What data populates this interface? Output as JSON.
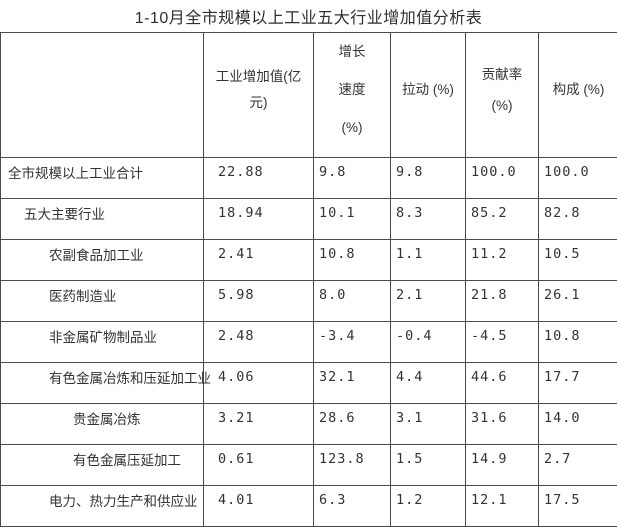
{
  "title": "1-10月全市规模以上工业五大行业增加值分析表",
  "table": {
    "columns": [
      "",
      "工业增加值(亿\n元)",
      "增长\n速度\n(%)",
      "拉动 (%)",
      "贡献率\n(%)",
      "构成 (%)"
    ],
    "rows": [
      {
        "label": "全市规模以上工业合计",
        "indent": 0,
        "values": [
          "22.88",
          "9.8",
          "9.8",
          "100.0",
          "100.0"
        ]
      },
      {
        "label": "五大主要行业",
        "indent": 1,
        "values": [
          "18.94",
          "10.1",
          "8.3",
          "85.2",
          "82.8"
        ]
      },
      {
        "label": "农副食品加工业",
        "indent": 2,
        "values": [
          "2.41",
          "10.8",
          "1.1",
          "11.2",
          "10.5"
        ]
      },
      {
        "label": "医药制造业",
        "indent": 2,
        "values": [
          "5.98",
          "8.0",
          "2.1",
          "21.8",
          "26.1"
        ]
      },
      {
        "label": "非金属矿物制品业",
        "indent": 2,
        "values": [
          "2.48",
          "-3.4",
          "-0.4",
          "-4.5",
          "10.8"
        ]
      },
      {
        "label": "有色金属冶炼和压延加工业",
        "indent": 2,
        "values": [
          "4.06",
          "32.1",
          "4.4",
          "44.6",
          "17.7"
        ]
      },
      {
        "label": "贵金属冶炼",
        "indent": 3,
        "values": [
          "3.21",
          "28.6",
          "3.1",
          "31.6",
          "14.0"
        ]
      },
      {
        "label": "有色金属压延加工",
        "indent": 3,
        "values": [
          "0.61",
          "123.8",
          "1.5",
          "14.9",
          "2.7"
        ]
      },
      {
        "label": "电力、热力生产和供应业",
        "indent": 2,
        "values": [
          "4.01",
          "6.3",
          "1.2",
          "12.1",
          "17.5"
        ]
      }
    ]
  }
}
